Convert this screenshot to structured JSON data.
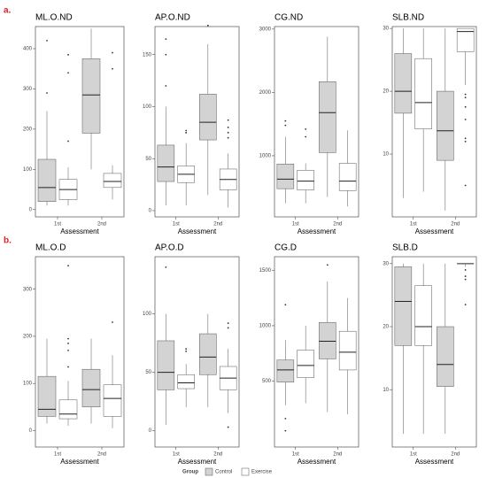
{
  "panel_labels": [
    "a.",
    "b."
  ],
  "legend": {
    "title": "Group"
  },
  "chart_data": [
    {
      "type": "box",
      "title": "ML.O.ND",
      "x_label": "Assessment",
      "categories": [
        "1st",
        "2nd"
      ],
      "ylim": [
        -18,
        455
      ],
      "yticks": [
        0,
        100,
        200,
        300,
        400
      ],
      "series": [
        {
          "name": "Control",
          "color": "#d3d3d3",
          "values": [
            [
              10,
              20,
              55,
              125,
              245
            ],
            [
              100,
              190,
              285,
              375,
              450
            ]
          ],
          "outliers": [
            [
              420,
              290
            ],
            []
          ]
        },
        {
          "name": "Exercise",
          "color": "#ffffff",
          "values": [
            [
              10,
              25,
              50,
              75,
              105
            ],
            [
              25,
              55,
              70,
              90,
              110
            ]
          ],
          "outliers": [
            [
              385,
              340,
              170
            ],
            [
              390,
              350
            ]
          ]
        }
      ]
    },
    {
      "type": "box",
      "title": "AP.O.ND",
      "x_label": "Assessment",
      "categories": [
        "1st",
        "2nd"
      ],
      "ylim": [
        -6,
        177
      ],
      "yticks": [
        0,
        50,
        100,
        150
      ],
      "series": [
        {
          "name": "Control",
          "color": "#d3d3d3",
          "values": [
            [
              5,
              28,
              42,
              63,
              100
            ],
            [
              15,
              68,
              85,
              112,
              160
            ]
          ],
          "outliers": [
            [
              165,
              150,
              120
            ],
            [
              178
            ]
          ]
        },
        {
          "name": "Exercise",
          "color": "#ffffff",
          "values": [
            [
              5,
              27,
              35,
              43,
              65
            ],
            [
              3,
              20,
              30,
              40,
              55
            ]
          ],
          "outliers": [
            [
              77,
              75
            ],
            [
              87,
              80,
              75,
              70
            ]
          ]
        }
      ]
    },
    {
      "type": "box",
      "title": "CG.ND",
      "x_label": "Assessment",
      "categories": [
        "1st",
        "2nd"
      ],
      "ylim": [
        35,
        3040
      ],
      "yticks": [
        1000,
        2000,
        3000
      ],
      "series": [
        {
          "name": "Control",
          "color": "#d3d3d3",
          "values": [
            [
              250,
              480,
              630,
              870,
              1300
            ],
            [
              350,
              1050,
              1680,
              2170,
              2880
            ]
          ],
          "outliers": [
            [
              1550,
              1480
            ],
            []
          ]
        },
        {
          "name": "Exercise",
          "color": "#ffffff",
          "values": [
            [
              250,
              460,
              600,
              770,
              880
            ],
            [
              200,
              450,
              600,
              880,
              1400
            ]
          ],
          "outliers": [
            [
              1420,
              1300
            ],
            []
          ]
        }
      ]
    },
    {
      "type": "box",
      "title": "SLB.ND",
      "x_label": "Assessment",
      "categories": [
        "1st",
        "2nd"
      ],
      "ylim": [
        0,
        30.3
      ],
      "yticks": [
        10,
        20,
        30
      ],
      "series": [
        {
          "name": "Control",
          "color": "#d3d3d3",
          "values": [
            [
              3,
              16.5,
              20,
              26,
              30
            ],
            [
              1,
              9,
              13.7,
              20,
              30
            ]
          ],
          "outliers": [
            [],
            []
          ]
        },
        {
          "name": "Exercise",
          "color": "#ffffff",
          "values": [
            [
              4,
              14,
              18.2,
              25.2,
              30
            ],
            [
              21,
              26.3,
              29.5,
              30,
              30
            ]
          ],
          "outliers": [
            [],
            [
              19.5,
              19,
              17.5,
              15.5,
              12.5,
              12,
              5
            ]
          ]
        }
      ]
    },
    {
      "type": "box",
      "title": "ML.O.D",
      "x_label": "Assessment",
      "categories": [
        "1st",
        "2nd"
      ],
      "ylim": [
        -35,
        369
      ],
      "yticks": [
        0,
        100,
        200,
        300
      ],
      "series": [
        {
          "name": "Control",
          "color": "#d3d3d3",
          "values": [
            [
              15,
              30,
              45,
              115,
              195
            ],
            [
              15,
              50,
              87,
              130,
              195
            ]
          ],
          "outliers": [
            [],
            []
          ]
        },
        {
          "name": "Exercise",
          "color": "#ffffff",
          "values": [
            [
              10,
              25,
              35,
              65,
              105
            ],
            [
              5,
              30,
              68,
              97,
              160
            ]
          ],
          "outliers": [
            [
              350,
              195,
              185,
              170,
              135
            ],
            [
              230
            ]
          ]
        }
      ]
    },
    {
      "type": "box",
      "title": "AP.O.D",
      "x_label": "Assessment",
      "categories": [
        "1st",
        "2nd"
      ],
      "ylim": [
        -14,
        149
      ],
      "yticks": [
        0,
        50,
        100
      ],
      "series": [
        {
          "name": "Control",
          "color": "#d3d3d3",
          "values": [
            [
              5,
              35,
              50,
              77,
              100
            ],
            [
              20,
              48,
              63,
              83,
              100
            ]
          ],
          "outliers": [
            [
              140
            ],
            []
          ]
        },
        {
          "name": "Exercise",
          "color": "#ffffff",
          "values": [
            [
              20,
              36,
              41,
              48,
              57
            ],
            [
              15,
              35,
              45,
              55,
              70
            ]
          ],
          "outliers": [
            [
              70,
              68
            ],
            [
              92,
              88,
              3
            ]
          ]
        }
      ]
    },
    {
      "type": "box",
      "title": "CG.D",
      "x_label": "Assessment",
      "categories": [
        "1st",
        "2nd"
      ],
      "ylim": [
        -97,
        1624
      ],
      "yticks": [
        500,
        1000,
        1500
      ],
      "series": [
        {
          "name": "Control",
          "color": "#d3d3d3",
          "values": [
            [
              280,
              490,
              600,
              690,
              870
            ],
            [
              220,
              700,
              860,
              1030,
              1400
            ]
          ],
          "outliers": [
            [
              1190,
              160,
              50
            ],
            [
              1550
            ]
          ]
        },
        {
          "name": "Exercise",
          "color": "#ffffff",
          "values": [
            [
              300,
              530,
              640,
              780,
              1000
            ],
            [
              200,
              600,
              760,
              950,
              1250
            ]
          ],
          "outliers": [
            [],
            []
          ]
        }
      ]
    },
    {
      "type": "box",
      "title": "SLB.D",
      "x_label": "Assessment",
      "categories": [
        "1st",
        "2nd"
      ],
      "ylim": [
        0.9,
        31.1
      ],
      "yticks": [
        10,
        20,
        30
      ],
      "series": [
        {
          "name": "Control",
          "color": "#d3d3d3",
          "values": [
            [
              3,
              17,
              24,
              29.5,
              30
            ],
            [
              3,
              10.5,
              14,
              20,
              30
            ]
          ],
          "outliers": [
            [],
            []
          ]
        },
        {
          "name": "Exercise",
          "color": "#ffffff",
          "values": [
            [
              3,
              17,
              20,
              26.5,
              30
            ],
            [
              29.5,
              30,
              30,
              30,
              30
            ]
          ],
          "outliers": [
            [],
            [
              29,
              28,
              27.5,
              23.5
            ]
          ]
        }
      ]
    }
  ]
}
